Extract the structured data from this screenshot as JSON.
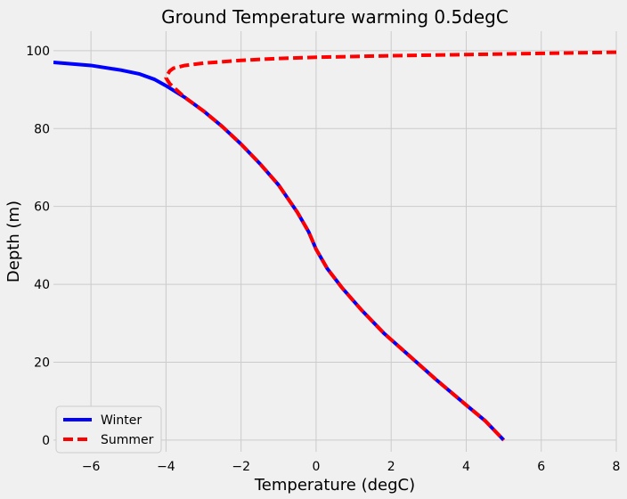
{
  "chart_data": {
    "type": "line",
    "title": "Ground Temperature warming 0.5degC",
    "xlabel": "Temperature (degC)",
    "ylabel": "Depth (m)",
    "xlim": [
      -7,
      8
    ],
    "ylim": [
      -3,
      105
    ],
    "xticks": [
      "−6",
      "−4",
      "−2",
      "0",
      "2",
      "4",
      "6",
      "8"
    ],
    "yticks": [
      "0",
      "20",
      "40",
      "60",
      "80",
      "100"
    ],
    "grid": true,
    "legend_position": "lower-left",
    "series": [
      {
        "name": "Winter",
        "color": "#0000ff",
        "style": "solid",
        "points": [
          [
            -7.0,
            97.0
          ],
          [
            -6.0,
            96.2
          ],
          [
            -5.2,
            95.0
          ],
          [
            -4.7,
            94.0
          ],
          [
            -4.3,
            92.6
          ],
          [
            -4.0,
            91.0
          ],
          [
            -3.5,
            88.0
          ],
          [
            -3.0,
            84.5
          ],
          [
            -2.5,
            80.5
          ],
          [
            -2.0,
            76.0
          ],
          [
            -1.5,
            71.0
          ],
          [
            -1.0,
            65.5
          ],
          [
            -0.5,
            58.5
          ],
          [
            -0.2,
            53.5
          ],
          [
            0.0,
            49.0
          ],
          [
            0.3,
            44.0
          ],
          [
            0.7,
            39.0
          ],
          [
            1.2,
            33.5
          ],
          [
            1.8,
            27.5
          ],
          [
            2.5,
            21.5
          ],
          [
            3.2,
            15.5
          ],
          [
            4.0,
            9.0
          ],
          [
            4.5,
            5.0
          ],
          [
            4.9,
            1.0
          ],
          [
            5.0,
            0.0
          ]
        ]
      },
      {
        "name": "Summer",
        "color": "#ff0000",
        "style": "dashed",
        "points": [
          [
            8.0,
            99.6
          ],
          [
            6.0,
            99.3
          ],
          [
            4.0,
            99.0
          ],
          [
            2.0,
            98.7
          ],
          [
            0.0,
            98.3
          ],
          [
            -1.0,
            98.0
          ],
          [
            -2.0,
            97.5
          ],
          [
            -3.0,
            96.8
          ],
          [
            -3.5,
            96.2
          ],
          [
            -3.8,
            95.5
          ],
          [
            -3.9,
            94.8
          ],
          [
            -3.95,
            94.0
          ],
          [
            -4.0,
            93.0
          ],
          [
            -3.9,
            91.5
          ],
          [
            -3.5,
            88.0
          ],
          [
            -3.0,
            84.5
          ],
          [
            -2.5,
            80.5
          ],
          [
            -2.0,
            76.0
          ],
          [
            -1.5,
            71.0
          ],
          [
            -1.0,
            65.5
          ],
          [
            -0.5,
            58.5
          ],
          [
            -0.2,
            53.5
          ],
          [
            0.0,
            49.0
          ],
          [
            0.3,
            44.0
          ],
          [
            0.7,
            39.0
          ],
          [
            1.2,
            33.5
          ],
          [
            1.8,
            27.5
          ],
          [
            2.5,
            21.5
          ],
          [
            3.2,
            15.5
          ],
          [
            4.0,
            9.0
          ],
          [
            4.5,
            5.0
          ],
          [
            4.9,
            1.0
          ],
          [
            5.0,
            0.0
          ]
        ]
      }
    ]
  }
}
